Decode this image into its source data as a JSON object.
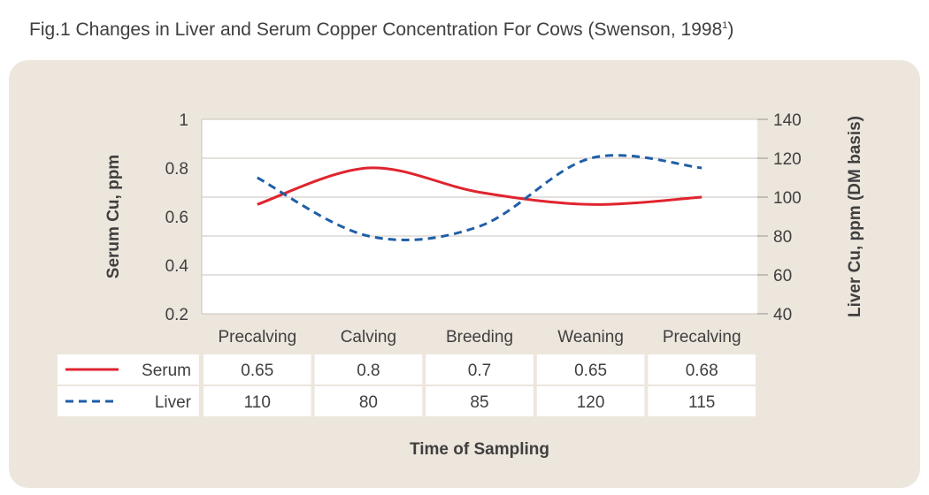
{
  "figure": {
    "title": "Fig.1 Changes in Liver and Serum Copper Concentration For Cows (Swenson, 1998",
    "title_ref": "1",
    "title_close": ")"
  },
  "chart_data": {
    "type": "line",
    "categories": [
      "Precalving",
      "Calving",
      "Breeding",
      "Weaning",
      "Precalving"
    ],
    "series": [
      {
        "name": "Serum",
        "axis": "left",
        "color": "#e0242f",
        "dash": "solid",
        "values": [
          0.65,
          0.8,
          0.7,
          0.65,
          0.68
        ]
      },
      {
        "name": "Liver",
        "axis": "right",
        "color": "#1f5fa6",
        "dash": "dashed",
        "values": [
          110,
          80,
          85,
          120,
          115
        ]
      }
    ],
    "ylabel": "Serum Cu, ppm",
    "y2label": "Liver Cu, ppm (DM basis)",
    "xlabel": "Time of Sampling",
    "ylim": [
      0.2,
      1
    ],
    "y2lim": [
      40,
      140
    ],
    "yticks": [
      "0.2",
      "0.4",
      "0.6",
      "0.8",
      "1"
    ],
    "y2ticks": [
      "40",
      "60",
      "80",
      "100",
      "120",
      "140"
    ],
    "grid": true,
    "legend": "data-table-below",
    "table": [
      {
        "label": "Serum",
        "cells": [
          "0.65",
          "0.8",
          "0.7",
          "0.65",
          "0.68"
        ]
      },
      {
        "label": "Liver",
        "cells": [
          "110",
          "80",
          "85",
          "120",
          "115"
        ]
      }
    ]
  }
}
